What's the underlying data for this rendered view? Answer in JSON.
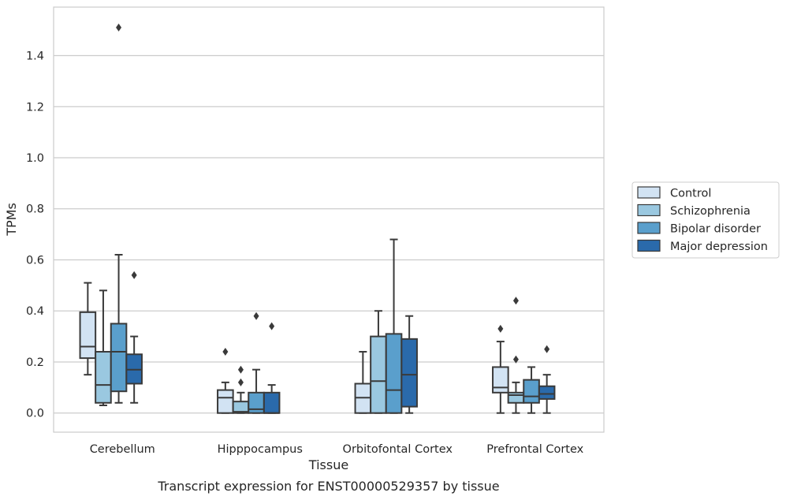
{
  "chart_data": {
    "type": "box",
    "xlabel": "Tissue",
    "ylabel": "TPMs",
    "caption": "Transcript expression for ENST00000529357 by tissue",
    "ylim": [
      -0.075,
      1.59
    ],
    "yticks": [
      0.0,
      0.2,
      0.4,
      0.6,
      0.8,
      1.0,
      1.2,
      1.4
    ],
    "ytick_labels": [
      "0.0",
      "0.2",
      "0.4",
      "0.6",
      "0.8",
      "1.0",
      "1.2",
      "1.4"
    ],
    "grid": "horizontal",
    "legend_position": "right",
    "categories": [
      "Cerebellum",
      "Hipppocampus",
      "Orbitofontal Cortex",
      "Prefrontal Cortex"
    ],
    "series": [
      {
        "name": "Control",
        "color": "#d2e3f3",
        "boxes": [
          {
            "whislo": 0.15,
            "q1": 0.215,
            "med": 0.26,
            "q3": 0.395,
            "whishi": 0.51,
            "fliers": []
          },
          {
            "whislo": 0.0,
            "q1": 0.0,
            "med": 0.06,
            "q3": 0.09,
            "whishi": 0.12,
            "fliers": [
              0.24
            ]
          },
          {
            "whislo": 0.0,
            "q1": 0.0,
            "med": 0.06,
            "q3": 0.115,
            "whishi": 0.24,
            "fliers": []
          },
          {
            "whislo": 0.0,
            "q1": 0.08,
            "med": 0.1,
            "q3": 0.18,
            "whishi": 0.28,
            "fliers": [
              0.33
            ]
          }
        ]
      },
      {
        "name": "Schizophrenia",
        "color": "#9ac8e0",
        "boxes": [
          {
            "whislo": 0.03,
            "q1": 0.04,
            "med": 0.11,
            "q3": 0.24,
            "whishi": 0.48,
            "fliers": []
          },
          {
            "whislo": 0.0,
            "q1": 0.0,
            "med": 0.005,
            "q3": 0.045,
            "whishi": 0.08,
            "fliers": [
              0.12,
              0.17
            ]
          },
          {
            "whislo": 0.0,
            "q1": 0.0,
            "med": 0.125,
            "q3": 0.3,
            "whishi": 0.4,
            "fliers": []
          },
          {
            "whislo": 0.0,
            "q1": 0.04,
            "med": 0.07,
            "q3": 0.08,
            "whishi": 0.12,
            "fliers": [
              0.21,
              0.44
            ]
          }
        ]
      },
      {
        "name": "Bipolar disorder",
        "color": "#5a9fcc",
        "boxes": [
          {
            "whislo": 0.04,
            "q1": 0.085,
            "med": 0.24,
            "q3": 0.35,
            "whishi": 0.62,
            "fliers": [
              1.51
            ]
          },
          {
            "whislo": 0.0,
            "q1": 0.0,
            "med": 0.015,
            "q3": 0.08,
            "whishi": 0.17,
            "fliers": [
              0.38
            ]
          },
          {
            "whislo": 0.0,
            "q1": 0.0,
            "med": 0.09,
            "q3": 0.31,
            "whishi": 0.68,
            "fliers": []
          },
          {
            "whislo": 0.0,
            "q1": 0.04,
            "med": 0.065,
            "q3": 0.13,
            "whishi": 0.18,
            "fliers": []
          }
        ]
      },
      {
        "name": "Major depression",
        "color": "#2a6aab",
        "boxes": [
          {
            "whislo": 0.04,
            "q1": 0.115,
            "med": 0.17,
            "q3": 0.23,
            "whishi": 0.3,
            "fliers": [
              0.54
            ]
          },
          {
            "whislo": 0.0,
            "q1": 0.0,
            "med": 0.0,
            "q3": 0.08,
            "whishi": 0.11,
            "fliers": [
              0.34
            ]
          },
          {
            "whislo": 0.0,
            "q1": 0.025,
            "med": 0.15,
            "q3": 0.29,
            "whishi": 0.38,
            "fliers": []
          },
          {
            "whislo": 0.0,
            "q1": 0.055,
            "med": 0.075,
            "q3": 0.105,
            "whishi": 0.15,
            "fliers": [
              0.25
            ]
          }
        ]
      }
    ]
  }
}
